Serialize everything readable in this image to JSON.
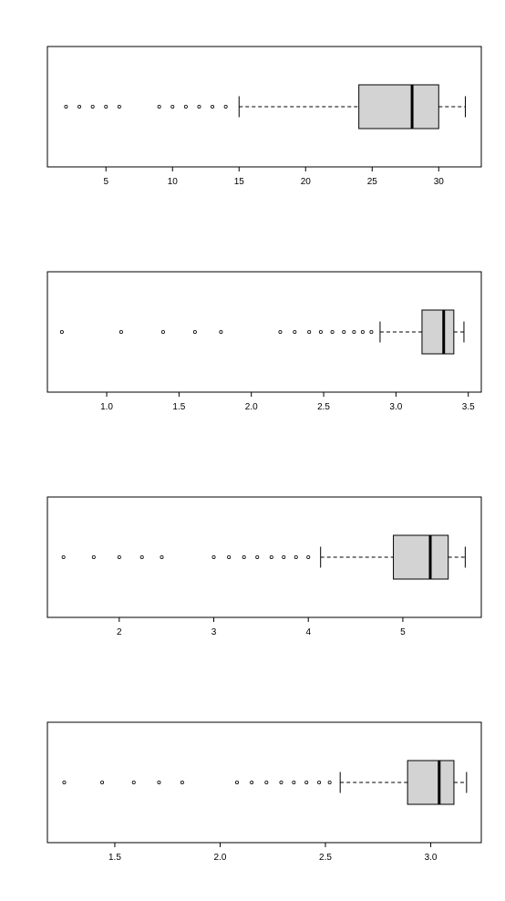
{
  "chart_data": [
    {
      "type": "boxplot",
      "orientation": "horizontal",
      "title": "",
      "xlabel": "",
      "ylabel": "",
      "xlim": [
        0.6,
        33.2
      ],
      "xticks": [
        5,
        10,
        15,
        20,
        25,
        30
      ],
      "tick_labels": [
        "5",
        "10",
        "15",
        "20",
        "25",
        "30"
      ],
      "box": {
        "whisker_low": 15,
        "q1": 24,
        "median": 28,
        "q3": 30,
        "whisker_high": 32
      },
      "outliers": [
        2,
        3,
        4,
        5,
        6,
        9,
        10,
        11,
        12,
        13,
        14
      ],
      "box_color": "#d3d3d3"
    },
    {
      "type": "boxplot",
      "orientation": "horizontal",
      "title": "",
      "xlabel": "",
      "ylabel": "",
      "xlim": [
        0.59,
        3.59
      ],
      "xticks": [
        1.0,
        1.5,
        2.0,
        2.5,
        3.0,
        3.5
      ],
      "tick_labels": [
        "1.0",
        "1.5",
        "2.0",
        "2.5",
        "3.0",
        "3.5"
      ],
      "box": {
        "whisker_low": 2.89,
        "q1": 3.18,
        "median": 3.33,
        "q3": 3.4,
        "whisker_high": 3.47
      },
      "outliers": [
        0.69,
        1.1,
        1.39,
        1.61,
        1.79,
        2.2,
        2.3,
        2.4,
        2.48,
        2.56,
        2.64,
        2.71,
        2.77,
        2.83
      ],
      "box_color": "#d3d3d3"
    },
    {
      "type": "boxplot",
      "orientation": "horizontal",
      "title": "",
      "xlabel": "",
      "ylabel": "",
      "xlim": [
        1.24,
        5.83
      ],
      "xticks": [
        2,
        3,
        4,
        5
      ],
      "tick_labels": [
        "2",
        "3",
        "4",
        "5"
      ],
      "box": {
        "whisker_low": 4.13,
        "q1": 4.9,
        "median": 5.29,
        "q3": 5.48,
        "whisker_high": 5.66
      },
      "outliers": [
        1.41,
        1.73,
        2.0,
        2.24,
        2.45,
        3.0,
        3.16,
        3.32,
        3.46,
        3.61,
        3.74,
        3.87,
        4.0
      ],
      "box_color": "#d3d3d3"
    },
    {
      "type": "boxplot",
      "orientation": "horizontal",
      "title": "",
      "xlabel": "",
      "ylabel": "",
      "xlim": [
        1.18,
        3.24
      ],
      "xticks": [
        1.5,
        2.0,
        2.5,
        3.0
      ],
      "tick_labels": [
        "1.5",
        "2.0",
        "2.5",
        "3.0"
      ],
      "box": {
        "whisker_low": 2.57,
        "q1": 2.89,
        "median": 3.04,
        "q3": 3.11,
        "whisker_high": 3.17
      },
      "outliers": [
        1.26,
        1.44,
        1.59,
        1.71,
        1.82,
        2.08,
        2.15,
        2.22,
        2.29,
        2.35,
        2.41,
        2.47,
        2.52
      ],
      "box_color": "#d3d3d3"
    }
  ]
}
